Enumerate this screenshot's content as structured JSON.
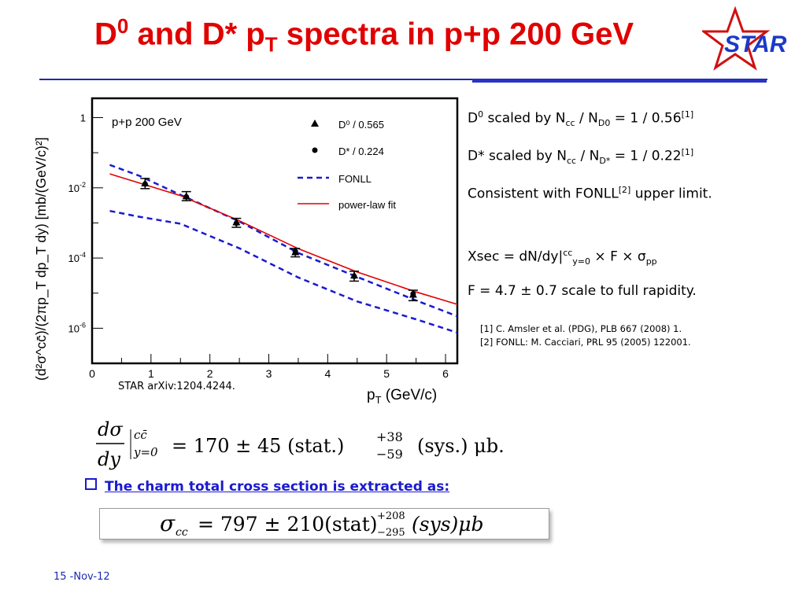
{
  "title": {
    "pre": "D",
    "sup": "0",
    "mid": " and D* p",
    "sub": "T",
    "post": " spectra in p+p 200 GeV"
  },
  "logo": {
    "text": "STAR",
    "icon": "star-outline-icon"
  },
  "notes": {
    "line1": {
      "a": "D",
      "a_sup": "0",
      "b": " scaled by N",
      "b_sub": "cc",
      "c": " / N",
      "c_sub": "D0",
      "d": " = 1 / 0.56",
      "ref": "[1]"
    },
    "line2": {
      "a": "D* scaled by N",
      "a_sub": "cc",
      "b": " / N",
      "b_sub": "D*",
      "c": " = 1 / 0.22",
      "ref": "[1]"
    },
    "line3": {
      "a": "Consistent with FONLL",
      "ref": "[2]",
      "b": " upper limit."
    },
    "line4": {
      "a": "Xsec = dN/dy|",
      "sup": "cc",
      "sub": "y=0",
      "b": " × F × ",
      "sigma": "σ",
      "sigma_sub": "pp"
    },
    "line5": "F = 4.7 ± 0.7 scale to full rapidity."
  },
  "refs": [
    "[1] C. Amsler et al. (PDG), PLB 667 (2008) 1.",
    "[2] FONLL: M. Cacciari, PRL 95 (2005) 122001."
  ],
  "star_ref": "STAR arXiv:1204.4244.",
  "formula1": {
    "frac_num": "dσ",
    "frac_den": "dy",
    "cc": "cc̄",
    "y": "y=0",
    "value": "= 170 ± 45 (stat.)",
    "up": "+38",
    "down": "−59",
    "rest": "(sys.) μb."
  },
  "bullet": "The charm total cross section is extracted as:",
  "formula2": {
    "sigma": "σ",
    "sub": "cc",
    "value": "= 797 ± 210(stat)",
    "up": "+208",
    "down": "−295",
    "rest": "(sys)μb"
  },
  "date": "15 -Nov-12",
  "chart_data": {
    "type": "scatter",
    "ylabel": "(d²σ^cc̄)/(2πp_T dp_T dy) [mb/(GeV/c)²]",
    "xlabel_main": "p",
    "xlabel_sub": "T",
    "xlabel_unit": " (GeV/c)",
    "annotation": "p+p 200 GeV",
    "xlim": [
      0,
      6.2
    ],
    "ylim_log10": [
      -7,
      0.55
    ],
    "log_y": true,
    "x_ticks": [
      0,
      1,
      2,
      3,
      4,
      5,
      6
    ],
    "y_ticks": [
      {
        "exp": 0,
        "label": "1",
        "sup": ""
      },
      {
        "exp": -2,
        "label": "10",
        "sup": "-2"
      },
      {
        "exp": -4,
        "label": "10",
        "sup": "-4"
      },
      {
        "exp": -6,
        "label": "10",
        "sup": "-6"
      }
    ],
    "series": [
      {
        "name": "D⁰ / 0.565",
        "marker": "triangle",
        "points": [
          {
            "x": 0.9,
            "y": 0.0135,
            "err_lo": 0.004,
            "err_hi": 0.005
          },
          {
            "x": 1.6,
            "y": 0.0058,
            "err_lo": 0.0015,
            "err_hi": 0.002
          },
          {
            "x": 2.45,
            "y": 0.00105,
            "err_lo": 0.0003,
            "err_hi": 0.0003
          },
          {
            "x": 3.45,
            "y": 0.000148,
            "err_lo": 4e-05,
            "err_hi": 4e-05
          },
          {
            "x": 4.45,
            "y": 3.2e-05,
            "err_lo": 1e-05,
            "err_hi": 1e-05
          },
          {
            "x": 5.45,
            "y": 9.1e-06,
            "err_lo": 3e-06,
            "err_hi": 3e-06
          }
        ]
      },
      {
        "name": "D* / 0.224",
        "marker": "circle",
        "points": [
          {
            "x": 0.9,
            "y": 0.0128
          },
          {
            "x": 1.6,
            "y": 0.0055
          },
          {
            "x": 2.45,
            "y": 0.00098
          },
          {
            "x": 3.45,
            "y": 0.000155
          },
          {
            "x": 4.45,
            "y": 3e-05
          },
          {
            "x": 5.45,
            "y": 9.5e-06
          }
        ]
      },
      {
        "name": "FONLL",
        "style": "dashed",
        "color": "#1a1ad0",
        "curves": [
          [
            [
              0.3,
              0.045
            ],
            [
              0.8,
              0.022
            ],
            [
              1.5,
              0.0063
            ],
            [
              2.5,
              0.0011
            ],
            [
              3.5,
              0.00014
            ],
            [
              4.5,
              2.9e-05
            ],
            [
              5.5,
              6.2e-06
            ],
            [
              6.2,
              2.2e-06
            ]
          ],
          [
            [
              0.3,
              0.0022
            ],
            [
              0.8,
              0.0015
            ],
            [
              1.5,
              0.00095
            ],
            [
              2.5,
              0.00019
            ],
            [
              3.5,
              2.8e-05
            ],
            [
              4.5,
              5.8e-06
            ],
            [
              5.5,
              1.8e-06
            ],
            [
              6.2,
              7.5e-07
            ]
          ]
        ]
      },
      {
        "name": "power-law fit",
        "style": "solid",
        "color": "#e00000",
        "curves": [
          [
            [
              0.3,
              0.025
            ],
            [
              0.8,
              0.0138
            ],
            [
              1.5,
              0.006
            ],
            [
              2.5,
              0.00115
            ],
            [
              3.5,
              0.000185
            ],
            [
              4.5,
              4e-05
            ],
            [
              5.5,
              1.08e-05
            ],
            [
              6.2,
              4.8e-06
            ]
          ]
        ]
      }
    ],
    "legend_position": "top-right",
    "grid": false
  }
}
